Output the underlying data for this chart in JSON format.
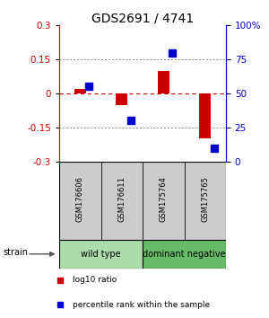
{
  "title": "GDS2691 / 4741",
  "samples": [
    "GSM176606",
    "GSM176611",
    "GSM175764",
    "GSM175765"
  ],
  "log10_ratio": [
    0.02,
    -0.05,
    0.1,
    -0.2
  ],
  "percentile_rank": [
    55,
    30,
    80,
    10
  ],
  "groups": [
    {
      "label": "wild type",
      "samples": [
        0,
        1
      ],
      "color": "#aaddaa"
    },
    {
      "label": "dominant negative",
      "samples": [
        2,
        3
      ],
      "color": "#66bb66"
    }
  ],
  "group_row_label": "strain",
  "ylim": [
    -0.3,
    0.3
  ],
  "yticks_left": [
    -0.3,
    -0.15,
    0,
    0.15,
    0.3
  ],
  "yticks_right": [
    0,
    25,
    50,
    75,
    100
  ],
  "left_axis_color": "#cc0000",
  "right_axis_color": "#0000cc",
  "bar_color_red": "#cc0000",
  "bar_color_blue": "#0000cc",
  "dotted_line_color": "#888888",
  "zero_line_color": "#cc0000",
  "legend_red_label": "log10 ratio",
  "legend_blue_label": "percentile rank within the sample",
  "sample_box_color": "#cccccc",
  "title_fontsize": 10,
  "tick_fontsize": 7.5,
  "label_fontsize": 7.5
}
